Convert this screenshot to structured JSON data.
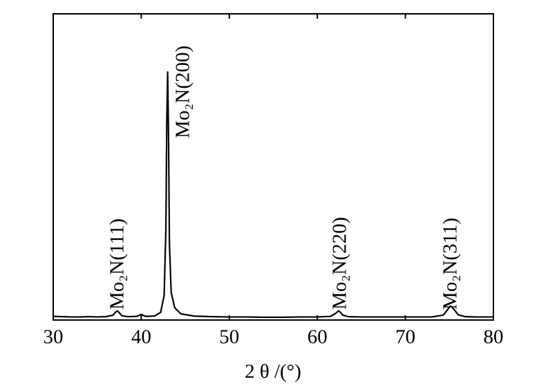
{
  "chart_data": {
    "type": "line",
    "xlabel": "2 θ /(°)",
    "x": [
      30,
      31,
      32,
      33,
      34,
      35,
      36,
      36.8,
      37.1,
      37.3,
      37.5,
      37.8,
      38.5,
      39.5,
      40,
      40.5,
      41.5,
      42.2,
      42.6,
      42.8,
      42.9,
      43.0,
      43.1,
      43.2,
      43.4,
      43.8,
      44.5,
      46,
      48,
      50,
      52,
      54,
      56,
      58,
      60,
      61.5,
      62.1,
      62.4,
      62.6,
      62.9,
      63.5,
      65,
      67,
      69,
      71,
      73,
      74.3,
      74.8,
      75.1,
      75.3,
      75.6,
      76,
      76.8,
      78,
      80
    ],
    "values": [
      1.2,
      1.1,
      1.0,
      1.0,
      1.1,
      1.0,
      1.1,
      1.6,
      2.6,
      3.0,
      2.4,
      1.4,
      1.1,
      1.2,
      1.8,
      1.2,
      1.3,
      2.5,
      8,
      30,
      65,
      81,
      60,
      25,
      9,
      4,
      2,
      1.3,
      1.1,
      1.0,
      1.0,
      0.9,
      0.9,
      1.0,
      1.0,
      1.2,
      2.2,
      3.0,
      2.6,
      1.6,
      1.1,
      1.0,
      1.0,
      1.0,
      1.0,
      1.0,
      1.6,
      3.4,
      4.6,
      4.2,
      3.2,
      1.7,
      1.1,
      1.0,
      1.0
    ],
    "color": "#000000",
    "xlim": [
      30,
      80
    ],
    "xticks": [
      30,
      40,
      50,
      60,
      70,
      80
    ],
    "ylim": [
      0,
      100
    ],
    "annotations": [
      "Mo₂N(111)",
      "Mo₂N(200)",
      "Mo₂N(220)",
      "Mo₂N(311)"
    ]
  }
}
